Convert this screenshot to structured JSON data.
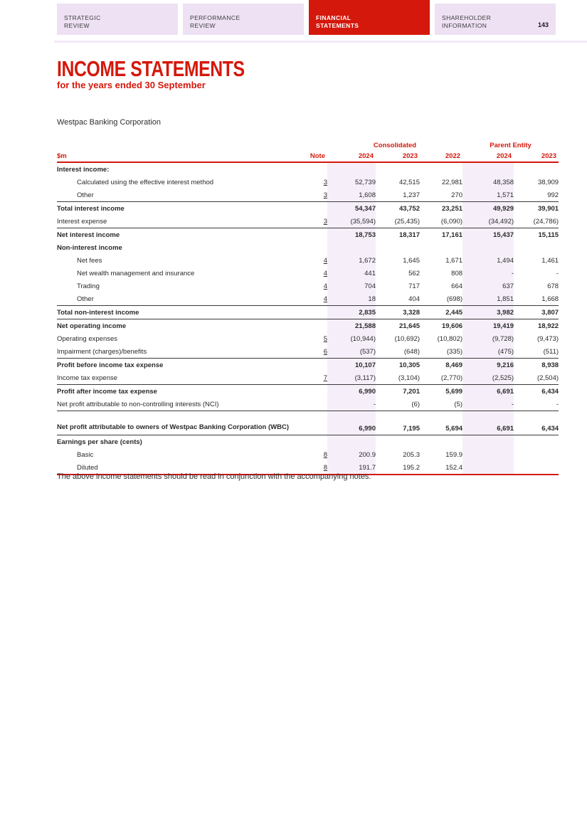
{
  "colors": {
    "brand_red": "#D5180C",
    "tab_background": "#EEE1F4",
    "column_highlight": "#F6EFFA",
    "text_dark": "#2A2A2A",
    "row_border_dark": "#3A3A3A"
  },
  "tabs": [
    {
      "line1": "STRATEGIC",
      "line2": "REVIEW",
      "active": false
    },
    {
      "line1": "PERFORMANCE",
      "line2": "REVIEW",
      "active": false
    },
    {
      "line1": "FINANCIAL",
      "line2": "STATEMENTS",
      "active": true
    },
    {
      "line1": "SHAREHOLDER",
      "line2": "INFORMATION",
      "active": false
    }
  ],
  "page_number": "143",
  "title": "INCOME STATEMENTS",
  "subtitle": "for the years ended 30 September",
  "entity_name": "Westpac Banking Corporation",
  "table": {
    "unit_header": "$m",
    "note_header": "Note",
    "group_headers": {
      "consolidated": "Consolidated",
      "parent": "Parent Entity"
    },
    "year_columns": [
      "2024",
      "2023",
      "2022",
      "2024",
      "2023"
    ],
    "rows": [
      {
        "label": "Interest income:",
        "style": "section",
        "note": "",
        "values": [
          "",
          "",
          "",
          "",
          ""
        ]
      },
      {
        "label": "Calculated using the effective interest method",
        "style": "item",
        "indent": true,
        "note": "3",
        "values": [
          "52,739",
          "42,515",
          "22,981",
          "48,358",
          "38,909"
        ]
      },
      {
        "label": "Other",
        "style": "item",
        "indent": true,
        "note": "3",
        "values": [
          "1,608",
          "1,237",
          "270",
          "1,571",
          "992"
        ]
      },
      {
        "label": "Total interest income",
        "style": "total",
        "top_border": true,
        "note": "",
        "values": [
          "54,347",
          "43,752",
          "23,251",
          "49,929",
          "39,901"
        ]
      },
      {
        "label": "Interest expense",
        "style": "item",
        "note": "3",
        "values": [
          "(35,594)",
          "(25,435)",
          "(6,090)",
          "(34,492)",
          "(24,786)"
        ]
      },
      {
        "label": "Net interest income",
        "style": "total",
        "top_border": true,
        "note": "",
        "values": [
          "18,753",
          "18,317",
          "17,161",
          "15,437",
          "15,115"
        ]
      },
      {
        "label": "Non-interest income",
        "style": "section",
        "note": "",
        "values": [
          "",
          "",
          "",
          "",
          ""
        ]
      },
      {
        "label": "Net fees",
        "style": "item",
        "indent": true,
        "note": "4",
        "values": [
          "1,672",
          "1,645",
          "1,671",
          "1,494",
          "1,461"
        ]
      },
      {
        "label": "Net wealth management and insurance",
        "style": "item",
        "indent": true,
        "note": "4",
        "values": [
          "441",
          "562",
          "808",
          "-",
          "-"
        ]
      },
      {
        "label": "Trading",
        "style": "item",
        "indent": true,
        "note": "4",
        "values": [
          "704",
          "717",
          "664",
          "637",
          "678"
        ]
      },
      {
        "label": "Other",
        "style": "item",
        "indent": true,
        "note": "4",
        "values": [
          "18",
          "404",
          "(698)",
          "1,851",
          "1,668"
        ]
      },
      {
        "label": "Total non-interest income",
        "style": "total",
        "top_border": true,
        "note": "",
        "values": [
          "2,835",
          "3,328",
          "2,445",
          "3,982",
          "3,807"
        ]
      },
      {
        "label": "Net operating income",
        "style": "total",
        "top_border": true,
        "note": "",
        "values": [
          "21,588",
          "21,645",
          "19,606",
          "19,419",
          "18,922"
        ]
      },
      {
        "label": "Operating expenses",
        "style": "item",
        "note": "5",
        "values": [
          "(10,944)",
          "(10,692)",
          "(10,802)",
          "(9,728)",
          "(9,473)"
        ]
      },
      {
        "label": "Impairment (charges)/benefits",
        "style": "item",
        "note": "6",
        "values": [
          "(537)",
          "(648)",
          "(335)",
          "(475)",
          "(511)"
        ]
      },
      {
        "label": "Profit before income tax expense",
        "style": "total",
        "top_border": true,
        "note": "",
        "values": [
          "10,107",
          "10,305",
          "8,469",
          "9,216",
          "8,938"
        ]
      },
      {
        "label": "Income tax expense",
        "style": "item",
        "note": "7",
        "values": [
          "(3,117)",
          "(3,104)",
          "(2,770)",
          "(2,525)",
          "(2,504)"
        ]
      },
      {
        "label": "Profit after income tax expense",
        "style": "total",
        "top_border": true,
        "note": "",
        "values": [
          "6,990",
          "7,201",
          "5,699",
          "6,691",
          "6,434"
        ]
      },
      {
        "label": "Net profit attributable to non-controlling interests (NCI)",
        "style": "item",
        "note": "",
        "values": [
          "-",
          "(6)",
          "(5)",
          "-",
          "-"
        ]
      },
      {
        "label": "Net profit attributable to owners of Westpac Banking Corporation (WBC)",
        "style": "total",
        "top_border": true,
        "two_line": true,
        "note": "",
        "values": [
          "6,990",
          "7,195",
          "5,694",
          "6,691",
          "6,434"
        ]
      },
      {
        "label": "Earnings per share (cents)",
        "style": "section",
        "top_border": true,
        "note": "",
        "values": [
          "",
          "",
          "",
          "",
          ""
        ]
      },
      {
        "label": "Basic",
        "style": "item",
        "indent": true,
        "note": "8",
        "values": [
          "200.9",
          "205.3",
          "159.9",
          "",
          ""
        ]
      },
      {
        "label": "Diluted",
        "style": "item",
        "indent": true,
        "note": "8",
        "values": [
          "191.7",
          "195.2",
          "152.4",
          "",
          ""
        ]
      }
    ]
  },
  "footer_note": "The above income statements should be read in conjunction with the accompanying notes."
}
